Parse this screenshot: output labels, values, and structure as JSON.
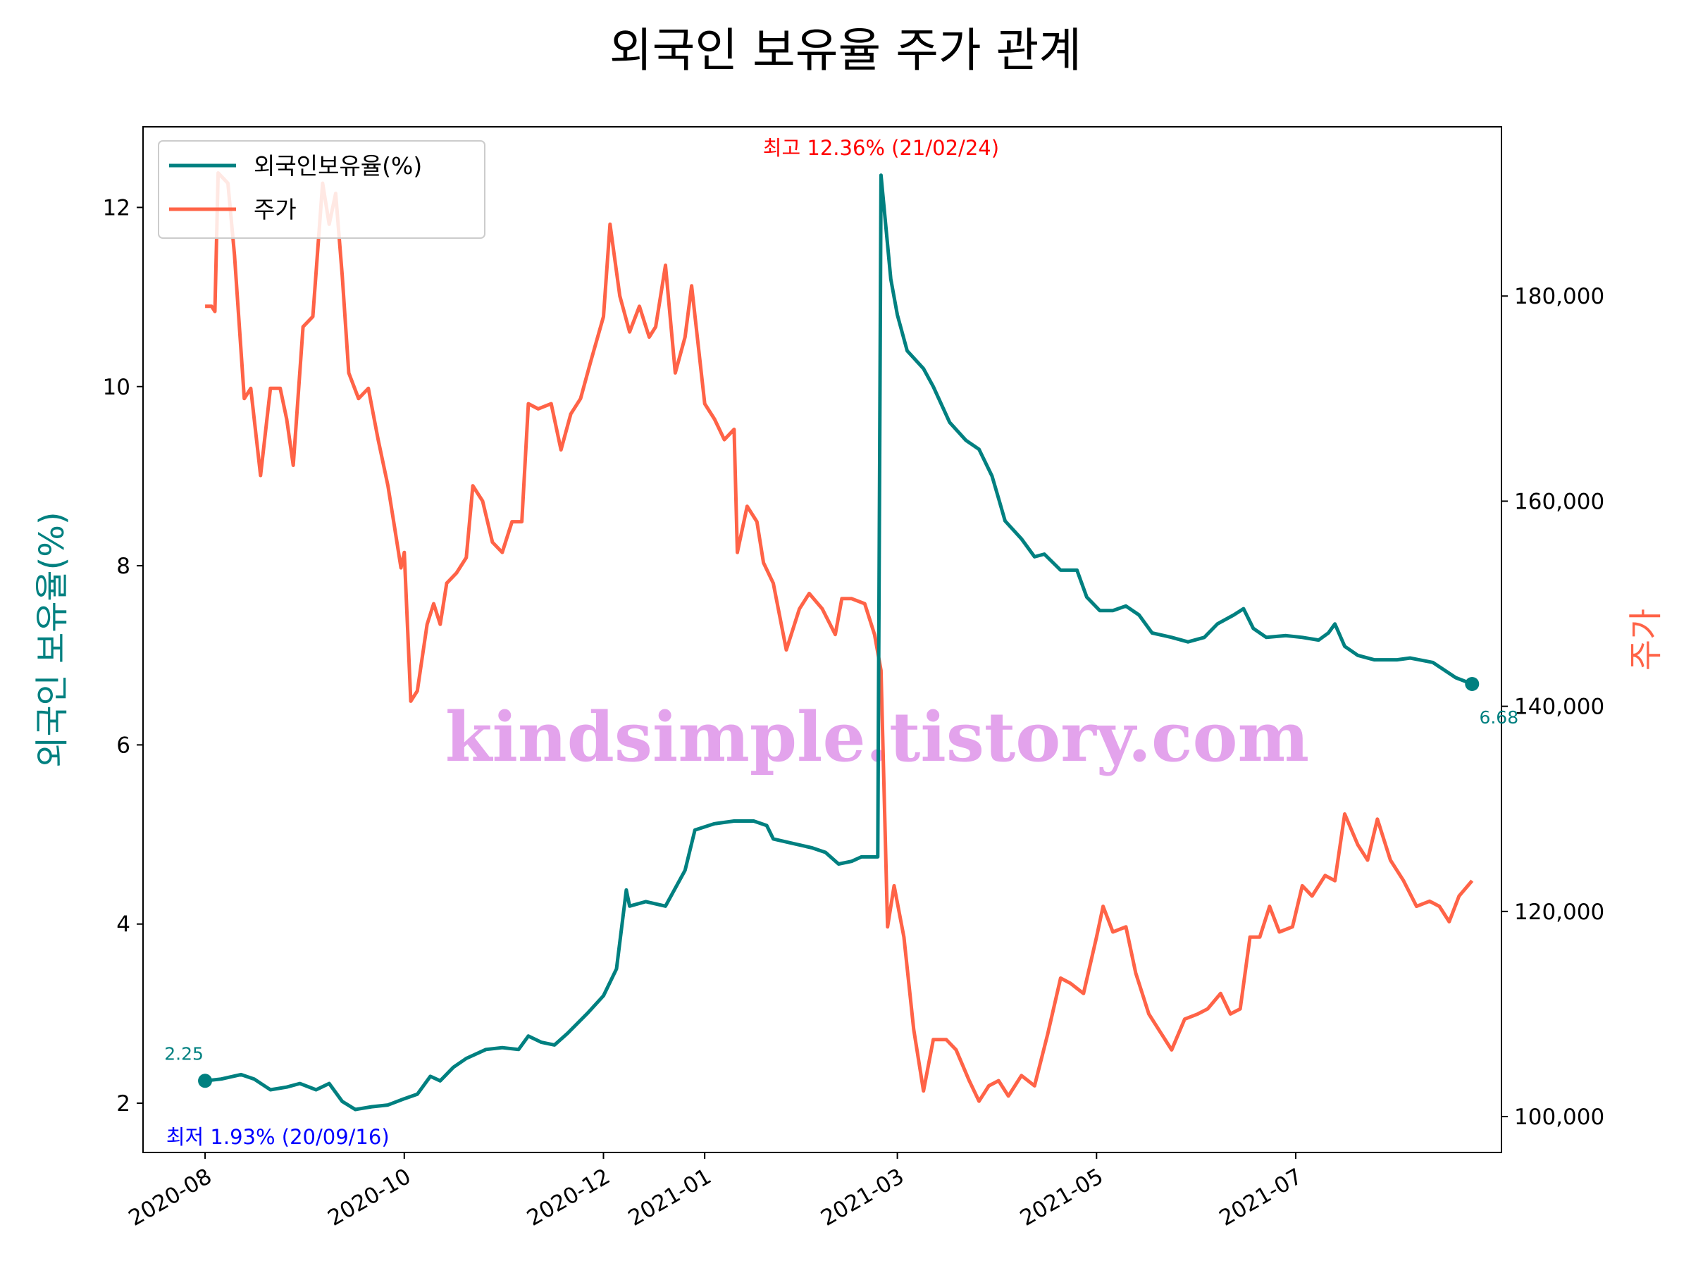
{
  "chart_data": {
    "type": "line",
    "title": "외국인 보유율 주가 관계",
    "ylabel_left": "외국인 보유율(%)",
    "ylabel_right": "주가",
    "x_ticks": [
      "2020-08",
      "2020-10",
      "2020-12",
      "2021-01",
      "2021-03",
      "2021-05",
      "2021-07"
    ],
    "y_left_ticks": [
      "2",
      "4",
      "6",
      "8",
      "10",
      "12"
    ],
    "y_right_ticks": [
      "100,000",
      "120,000",
      "140,000",
      "160,000",
      "180,000"
    ],
    "ylim_left": [
      1.45,
      12.9
    ],
    "ylim_right": [
      96500,
      196500
    ],
    "legend_position": "top-left",
    "grid": false,
    "colors": {
      "ownership": "#008080",
      "price": "#ff6347",
      "max_annot": "#ff0000",
      "min_annot": "#0000ff",
      "watermark": "#e3a3ec"
    },
    "annotations": {
      "max": "최고 12.36% (21/02/24)",
      "min": "최저 1.93% (20/09/16)",
      "start_value": "2.25",
      "end_value": "6.68"
    },
    "watermark": "kindsimple.tistory.com",
    "series": [
      {
        "name": "외국인보유율(%)",
        "axis": "left",
        "color": "#008080",
        "points": [
          [
            "2020-08-01",
            2.25
          ],
          [
            "2020-08-06",
            2.27
          ],
          [
            "2020-08-12",
            2.32
          ],
          [
            "2020-08-16",
            2.27
          ],
          [
            "2020-08-21",
            2.15
          ],
          [
            "2020-08-26",
            2.18
          ],
          [
            "2020-08-30",
            2.22
          ],
          [
            "2020-09-04",
            2.15
          ],
          [
            "2020-09-08",
            2.22
          ],
          [
            "2020-09-12",
            2.02
          ],
          [
            "2020-09-16",
            1.93
          ],
          [
            "2020-09-21",
            1.96
          ],
          [
            "2020-09-26",
            1.98
          ],
          [
            "2020-10-01",
            2.05
          ],
          [
            "2020-10-05",
            2.1
          ],
          [
            "2020-10-09",
            2.3
          ],
          [
            "2020-10-12",
            2.25
          ],
          [
            "2020-10-16",
            2.4
          ],
          [
            "2020-10-20",
            2.5
          ],
          [
            "2020-10-26",
            2.6
          ],
          [
            "2020-10-31",
            2.62
          ],
          [
            "2020-11-05",
            2.6
          ],
          [
            "2020-11-08",
            2.75
          ],
          [
            "2020-11-12",
            2.68
          ],
          [
            "2020-11-16",
            2.65
          ],
          [
            "2020-11-20",
            2.78
          ],
          [
            "2020-11-26",
            3.0
          ],
          [
            "2020-12-01",
            3.2
          ],
          [
            "2020-12-05",
            3.5
          ],
          [
            "2020-12-08",
            4.38
          ],
          [
            "2020-12-09",
            4.2
          ],
          [
            "2020-12-14",
            4.25
          ],
          [
            "2020-12-20",
            4.2
          ],
          [
            "2020-12-26",
            4.6
          ],
          [
            "2020-12-29",
            5.05
          ],
          [
            "2021-01-04",
            5.12
          ],
          [
            "2021-01-10",
            5.15
          ],
          [
            "2021-01-16",
            5.15
          ],
          [
            "2021-01-20",
            5.1
          ],
          [
            "2021-01-22",
            4.95
          ],
          [
            "2021-01-28",
            4.9
          ],
          [
            "2021-02-03",
            4.85
          ],
          [
            "2021-02-07",
            4.8
          ],
          [
            "2021-02-11",
            4.67
          ],
          [
            "2021-02-15",
            4.7
          ],
          [
            "2021-02-18",
            4.75
          ],
          [
            "2021-02-22",
            4.75
          ],
          [
            "2021-02-23",
            4.75
          ],
          [
            "2021-02-24",
            12.36
          ],
          [
            "2021-02-27",
            11.2
          ],
          [
            "2021-03-01",
            10.8
          ],
          [
            "2021-03-04",
            10.4
          ],
          [
            "2021-03-09",
            10.2
          ],
          [
            "2021-03-12",
            10.0
          ],
          [
            "2021-03-17",
            9.6
          ],
          [
            "2021-03-22",
            9.4
          ],
          [
            "2021-03-26",
            9.3
          ],
          [
            "2021-03-30",
            9.0
          ],
          [
            "2021-04-01",
            8.75
          ],
          [
            "2021-04-03",
            8.5
          ],
          [
            "2021-04-08",
            8.3
          ],
          [
            "2021-04-12",
            8.1
          ],
          [
            "2021-04-15",
            8.13
          ],
          [
            "2021-04-20",
            7.95
          ],
          [
            "2021-04-25",
            7.95
          ],
          [
            "2021-04-28",
            7.65
          ],
          [
            "2021-05-02",
            7.5
          ],
          [
            "2021-05-06",
            7.5
          ],
          [
            "2021-05-10",
            7.55
          ],
          [
            "2021-05-14",
            7.45
          ],
          [
            "2021-05-18",
            7.25
          ],
          [
            "2021-05-24",
            7.2
          ],
          [
            "2021-05-29",
            7.15
          ],
          [
            "2021-06-03",
            7.2
          ],
          [
            "2021-06-07",
            7.35
          ],
          [
            "2021-06-12",
            7.45
          ],
          [
            "2021-06-15",
            7.52
          ],
          [
            "2021-06-18",
            7.3
          ],
          [
            "2021-06-22",
            7.2
          ],
          [
            "2021-06-28",
            7.22
          ],
          [
            "2021-07-03",
            7.2
          ],
          [
            "2021-07-08",
            7.17
          ],
          [
            "2021-07-11",
            7.25
          ],
          [
            "2021-07-13",
            7.35
          ],
          [
            "2021-07-16",
            7.1
          ],
          [
            "2021-07-20",
            7.0
          ],
          [
            "2021-07-25",
            6.95
          ],
          [
            "2021-08-01",
            6.95
          ],
          [
            "2021-08-05",
            6.97
          ],
          [
            "2021-08-12",
            6.92
          ],
          [
            "2021-08-19",
            6.75
          ],
          [
            "2021-08-24",
            6.68
          ]
        ]
      },
      {
        "name": "주가",
        "axis": "right",
        "color": "#ff6347",
        "points": [
          [
            "2020-08-01",
            179000
          ],
          [
            "2020-08-03",
            179000
          ],
          [
            "2020-08-04",
            178500
          ],
          [
            "2020-08-05",
            192000
          ],
          [
            "2020-08-08",
            191000
          ],
          [
            "2020-08-10",
            184000
          ],
          [
            "2020-08-13",
            170000
          ],
          [
            "2020-08-15",
            171000
          ],
          [
            "2020-08-18",
            162500
          ],
          [
            "2020-08-21",
            171000
          ],
          [
            "2020-08-24",
            171000
          ],
          [
            "2020-08-26",
            168000
          ],
          [
            "2020-08-28",
            163500
          ],
          [
            "2020-08-31",
            177000
          ],
          [
            "2020-09-03",
            178000
          ],
          [
            "2020-09-06",
            191000
          ],
          [
            "2020-09-08",
            187000
          ],
          [
            "2020-09-10",
            190000
          ],
          [
            "2020-09-12",
            182000
          ],
          [
            "2020-09-14",
            172500
          ],
          [
            "2020-09-17",
            170000
          ],
          [
            "2020-09-20",
            171000
          ],
          [
            "2020-09-23",
            166000
          ],
          [
            "2020-09-26",
            161500
          ],
          [
            "2020-09-28",
            157500
          ],
          [
            "2020-09-30",
            153500
          ],
          [
            "2020-10-01",
            155000
          ],
          [
            "2020-10-03",
            140500
          ],
          [
            "2020-10-05",
            141500
          ],
          [
            "2020-10-08",
            148000
          ],
          [
            "2020-10-10",
            150000
          ],
          [
            "2020-10-12",
            148000
          ],
          [
            "2020-10-14",
            152000
          ],
          [
            "2020-10-17",
            153000
          ],
          [
            "2020-10-20",
            154500
          ],
          [
            "2020-10-22",
            161500
          ],
          [
            "2020-10-25",
            160000
          ],
          [
            "2020-10-28",
            156000
          ],
          [
            "2020-10-31",
            155000
          ],
          [
            "2020-11-03",
            158000
          ],
          [
            "2020-11-06",
            158000
          ],
          [
            "2020-11-08",
            169500
          ],
          [
            "2020-11-11",
            169000
          ],
          [
            "2020-11-15",
            169500
          ],
          [
            "2020-11-18",
            165000
          ],
          [
            "2020-11-21",
            168500
          ],
          [
            "2020-11-24",
            170000
          ],
          [
            "2020-11-27",
            173500
          ],
          [
            "2020-12-01",
            178000
          ],
          [
            "2020-12-03",
            187000
          ],
          [
            "2020-12-06",
            180000
          ],
          [
            "2020-12-09",
            176500
          ],
          [
            "2020-12-12",
            179000
          ],
          [
            "2020-12-15",
            176000
          ],
          [
            "2020-12-17",
            177000
          ],
          [
            "2020-12-20",
            183000
          ],
          [
            "2020-12-23",
            172500
          ],
          [
            "2020-12-26",
            176000
          ],
          [
            "2020-12-28",
            181000
          ],
          [
            "2021-01-01",
            169500
          ],
          [
            "2021-01-04",
            168000
          ],
          [
            "2021-01-07",
            166000
          ],
          [
            "2021-01-10",
            167000
          ],
          [
            "2021-01-11",
            155000
          ],
          [
            "2021-01-14",
            159500
          ],
          [
            "2021-01-17",
            158000
          ],
          [
            "2021-01-19",
            154000
          ],
          [
            "2021-01-22",
            152000
          ],
          [
            "2021-01-26",
            145500
          ],
          [
            "2021-01-30",
            149500
          ],
          [
            "2021-02-02",
            151000
          ],
          [
            "2021-02-06",
            149500
          ],
          [
            "2021-02-10",
            147000
          ],
          [
            "2021-02-12",
            150500
          ],
          [
            "2021-02-15",
            150500
          ],
          [
            "2021-02-19",
            150000
          ],
          [
            "2021-02-22",
            147000
          ],
          [
            "2021-02-24",
            143500
          ],
          [
            "2021-02-26",
            118500
          ],
          [
            "2021-02-28",
            122500
          ],
          [
            "2021-03-03",
            117500
          ],
          [
            "2021-03-06",
            108500
          ],
          [
            "2021-03-09",
            102500
          ],
          [
            "2021-03-12",
            107500
          ],
          [
            "2021-03-16",
            107500
          ],
          [
            "2021-03-19",
            106500
          ],
          [
            "2021-03-23",
            103500
          ],
          [
            "2021-03-26",
            101500
          ],
          [
            "2021-03-29",
            103000
          ],
          [
            "2021-04-01",
            103500
          ],
          [
            "2021-04-04",
            102000
          ],
          [
            "2021-04-08",
            104000
          ],
          [
            "2021-04-12",
            103000
          ],
          [
            "2021-04-16",
            108000
          ],
          [
            "2021-04-20",
            113500
          ],
          [
            "2021-04-23",
            113000
          ],
          [
            "2021-04-27",
            112000
          ],
          [
            "2021-05-01",
            117500
          ],
          [
            "2021-05-03",
            120500
          ],
          [
            "2021-05-06",
            118000
          ],
          [
            "2021-05-10",
            118500
          ],
          [
            "2021-05-13",
            114000
          ],
          [
            "2021-05-17",
            110000
          ],
          [
            "2021-05-20",
            108500
          ],
          [
            "2021-05-24",
            106500
          ],
          [
            "2021-05-28",
            109500
          ],
          [
            "2021-06-01",
            110000
          ],
          [
            "2021-06-04",
            110500
          ],
          [
            "2021-06-08",
            112000
          ],
          [
            "2021-06-11",
            110000
          ],
          [
            "2021-06-14",
            110500
          ],
          [
            "2021-06-17",
            117500
          ],
          [
            "2021-06-20",
            117500
          ],
          [
            "2021-06-23",
            120500
          ],
          [
            "2021-06-26",
            118000
          ],
          [
            "2021-06-30",
            118500
          ],
          [
            "2021-07-03",
            122500
          ],
          [
            "2021-07-06",
            121500
          ],
          [
            "2021-07-10",
            123500
          ],
          [
            "2021-07-13",
            123000
          ],
          [
            "2021-07-16",
            129500
          ],
          [
            "2021-07-20",
            126500
          ],
          [
            "2021-07-23",
            125000
          ],
          [
            "2021-07-26",
            129000
          ],
          [
            "2021-07-30",
            125000
          ],
          [
            "2021-08-03",
            123000
          ],
          [
            "2021-08-07",
            120500
          ],
          [
            "2021-08-11",
            121000
          ],
          [
            "2021-08-14",
            120500
          ],
          [
            "2021-08-17",
            119000
          ],
          [
            "2021-08-20",
            121500
          ],
          [
            "2021-08-24",
            123000
          ]
        ]
      }
    ]
  }
}
